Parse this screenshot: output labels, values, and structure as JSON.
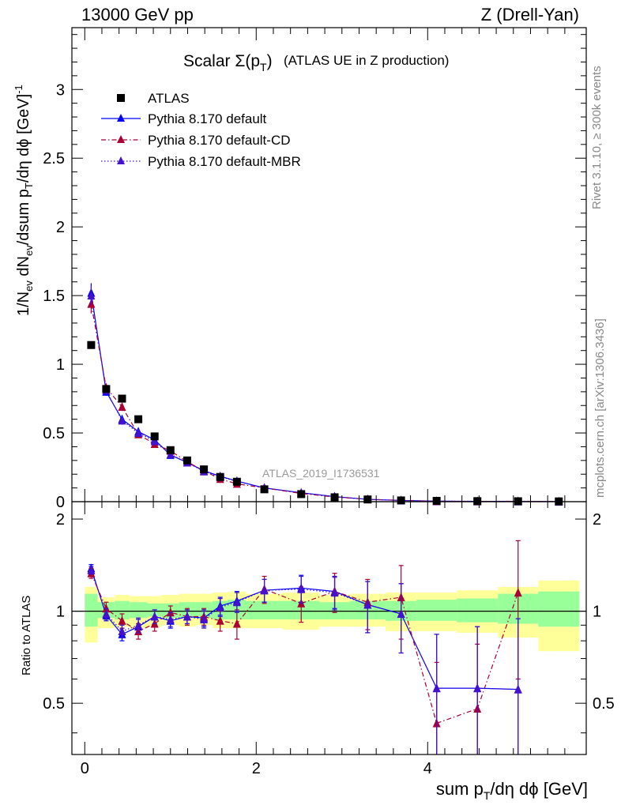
{
  "header": {
    "left": "13000 GeV pp",
    "right": "Z (Drell-Yan)"
  },
  "side_labels": {
    "rivet": "Rivet 3.1.10, ≥ 300k events",
    "mcplots": "mcplots.cern.ch [arXiv:1306.3436]"
  },
  "chart_data": [
    {
      "type": "scatter",
      "panel": "main",
      "title_main": "Scalar Σ(p",
      "title_sub": "T",
      "title_close": ")",
      "title_extra": "(ATLAS UE in Z production)",
      "ylabel": "1/N_ev dN_ev/dsum p_T/dη dϕ [GeV]^-1",
      "analysis_tag": "ATLAS_2019_I1736531",
      "xlim": [
        -0.15,
        5.85
      ],
      "ylim": [
        0,
        3.45
      ],
      "yticks": [
        0,
        0.5,
        1,
        1.5,
        2,
        2.5,
        3
      ],
      "ytick_labels": [
        "0",
        "0.5",
        "1",
        "1.5",
        "2",
        "2.5",
        "3"
      ],
      "legend_placement": "top-left",
      "x": [
        0.075,
        0.25,
        0.435,
        0.625,
        0.815,
        1.0,
        1.195,
        1.39,
        1.58,
        1.775,
        2.095,
        2.525,
        2.915,
        3.3,
        3.69,
        4.105,
        4.58,
        5.055,
        5.53
      ],
      "series": [
        {
          "name": "ATLAS",
          "marker": "square",
          "color": "#000000",
          "values": [
            1.14,
            0.82,
            0.75,
            0.6,
            0.475,
            0.375,
            0.3,
            0.235,
            0.18,
            0.145,
            0.09,
            0.055,
            0.032,
            0.016,
            0.009,
            0.006,
            0.004,
            0.003,
            0.002
          ]
        },
        {
          "name": "Pythia 8.170 default",
          "marker": "triangle",
          "line": "solid",
          "color": "#0000ff",
          "values": [
            1.52,
            0.8,
            0.6,
            0.51,
            0.45,
            0.34,
            0.285,
            0.225,
            0.185,
            0.15,
            0.1,
            0.065,
            0.037,
            0.017,
            0.009,
            0.004,
            0.0026,
            0.0019,
            0.001
          ],
          "errors": [
            0.07,
            0.03,
            0.03,
            0.02,
            0.02,
            0.015,
            0.012,
            0.01,
            0.008,
            0.007,
            0.005,
            0.004,
            0.003,
            0.002,
            0.001,
            0.001,
            0.001,
            0.001,
            0.001
          ]
        },
        {
          "name": "Pythia 8.170 default-CD",
          "marker": "triangle",
          "line": "dashdot",
          "color": "#aa0033",
          "values": [
            1.44,
            0.83,
            0.69,
            0.49,
            0.42,
            0.37,
            0.29,
            0.225,
            0.165,
            0.13,
            0.1,
            0.06,
            0.034,
            0.017,
            0.01,
            0.003,
            0.002,
            0.0035,
            0.001
          ],
          "errors": [
            0.07,
            0.03,
            0.03,
            0.02,
            0.02,
            0.015,
            0.012,
            0.01,
            0.008,
            0.007,
            0.005,
            0.004,
            0.003,
            0.002,
            0.001,
            0.001,
            0.001,
            0.001,
            0.001
          ]
        },
        {
          "name": "Pythia 8.170 default-MBR",
          "marker": "triangle",
          "line": "dotted",
          "color": "#4411cc",
          "values": [
            1.5,
            0.81,
            0.59,
            0.5,
            0.44,
            0.345,
            0.285,
            0.22,
            0.18,
            0.148,
            0.1,
            0.064,
            0.036,
            0.017,
            0.009,
            0.004,
            0.0026,
            0.0019,
            0.001
          ],
          "errors": [
            0.07,
            0.03,
            0.03,
            0.02,
            0.02,
            0.015,
            0.012,
            0.01,
            0.008,
            0.007,
            0.005,
            0.004,
            0.003,
            0.002,
            0.001,
            0.001,
            0.001,
            0.001,
            0.001
          ]
        }
      ]
    },
    {
      "type": "line",
      "panel": "ratio",
      "ylabel": "Ratio to ATLAS",
      "xlabel": "sum p_T/dη dϕ [GeV]",
      "xlim": [
        -0.15,
        5.85
      ],
      "ylim": [
        0.34,
        2.28
      ],
      "xticks": [
        0,
        2,
        4
      ],
      "xtick_labels": [
        "0",
        "2",
        "4"
      ],
      "yticks": [
        0.5,
        1,
        2
      ],
      "ytick_labels": [
        "0.5",
        "1",
        "2"
      ],
      "reference": 1,
      "bin_edges": [
        0.0,
        0.15,
        0.35,
        0.52,
        0.73,
        0.9,
        1.1,
        1.29,
        1.49,
        1.67,
        1.88,
        2.31,
        2.74,
        3.09,
        3.51,
        3.87,
        4.34,
        4.82,
        5.29,
        5.77
      ],
      "band_inner": [
        [
          0.89,
          1.14
        ],
        [
          0.95,
          1.07
        ],
        [
          0.94,
          1.08
        ],
        [
          0.95,
          1.07
        ],
        [
          0.96,
          1.06
        ],
        [
          0.95,
          1.06
        ],
        [
          0.95,
          1.07
        ],
        [
          0.95,
          1.07
        ],
        [
          0.94,
          1.08
        ],
        [
          0.94,
          1.09
        ],
        [
          0.94,
          1.08
        ],
        [
          0.94,
          1.08
        ],
        [
          0.94,
          1.07
        ],
        [
          0.94,
          1.08
        ],
        [
          0.93,
          1.08
        ],
        [
          0.93,
          1.09
        ],
        [
          0.92,
          1.1
        ],
        [
          0.91,
          1.14
        ],
        [
          0.89,
          1.16
        ]
      ],
      "band_outer": [
        [
          0.79,
          1.2
        ],
        [
          0.88,
          1.11
        ],
        [
          0.89,
          1.13
        ],
        [
          0.88,
          1.12
        ],
        [
          0.89,
          1.12
        ],
        [
          0.9,
          1.13
        ],
        [
          0.89,
          1.14
        ],
        [
          0.9,
          1.14
        ],
        [
          0.88,
          1.15
        ],
        [
          0.88,
          1.16
        ],
        [
          0.88,
          1.14
        ],
        [
          0.87,
          1.15
        ],
        [
          0.89,
          1.13
        ],
        [
          0.89,
          1.14
        ],
        [
          0.86,
          1.15
        ],
        [
          0.86,
          1.15
        ],
        [
          0.85,
          1.17
        ],
        [
          0.82,
          1.2
        ],
        [
          0.74,
          1.26
        ]
      ],
      "series": [
        {
          "name": "Pythia 8.170 default",
          "color": "#0000ff",
          "line": "solid",
          "x": [
            0.075,
            0.25,
            0.435,
            0.625,
            0.815,
            1.0,
            1.195,
            1.39,
            1.58,
            1.775,
            2.095,
            2.525,
            2.915,
            3.3,
            3.69,
            4.105,
            4.58,
            5.055
          ],
          "values": [
            1.38,
            0.97,
            0.84,
            0.89,
            0.96,
            0.93,
            0.96,
            0.95,
            1.04,
            1.08,
            1.17,
            1.19,
            1.16,
            1.05,
            0.98,
            0.56,
            0.56,
            0.555
          ],
          "errors": [
            0.04,
            0.04,
            0.04,
            0.05,
            0.05,
            0.05,
            0.05,
            0.06,
            0.07,
            0.08,
            0.1,
            0.12,
            0.14,
            0.2,
            0.25,
            0.28,
            0.33,
            0.39
          ]
        },
        {
          "name": "Pythia 8.170 default-CD",
          "color": "#aa0033",
          "line": "dashdot",
          "x": [
            0.075,
            0.25,
            0.435,
            0.625,
            0.815,
            1.0,
            1.195,
            1.39,
            1.58,
            1.775,
            2.095,
            2.525,
            2.915,
            3.3,
            3.69,
            4.105,
            4.58,
            5.055
          ],
          "values": [
            1.33,
            1.02,
            0.93,
            0.86,
            0.91,
            0.99,
            0.96,
            0.96,
            0.93,
            0.91,
            1.18,
            1.06,
            1.16,
            1.07,
            1.11,
            0.43,
            0.48,
            1.15
          ],
          "errors": [
            0.05,
            0.05,
            0.05,
            0.05,
            0.05,
            0.05,
            0.06,
            0.06,
            0.07,
            0.1,
            0.12,
            0.14,
            0.17,
            0.2,
            0.3,
            0.25,
            0.3,
            0.55
          ]
        },
        {
          "name": "Pythia 8.170 default-MBR",
          "color": "#4411cc",
          "line": "dotted",
          "x": [
            0.075,
            0.25,
            0.435,
            0.625,
            0.815,
            1.0,
            1.195,
            1.39,
            1.58,
            1.775,
            2.095,
            2.525,
            2.915,
            3.3,
            3.69,
            4.105,
            4.58,
            5.055
          ],
          "values": [
            1.36,
            0.98,
            0.86,
            0.9,
            0.96,
            0.94,
            0.96,
            0.94,
            1.03,
            1.07,
            1.17,
            1.18,
            1.15,
            1.05,
            0.98,
            0.56,
            0.56,
            0.555
          ],
          "errors": [
            0.04,
            0.04,
            0.04,
            0.05,
            0.05,
            0.05,
            0.05,
            0.06,
            0.07,
            0.08,
            0.1,
            0.12,
            0.14,
            0.2,
            0.25,
            0.28,
            0.33,
            0.39
          ]
        }
      ]
    }
  ]
}
